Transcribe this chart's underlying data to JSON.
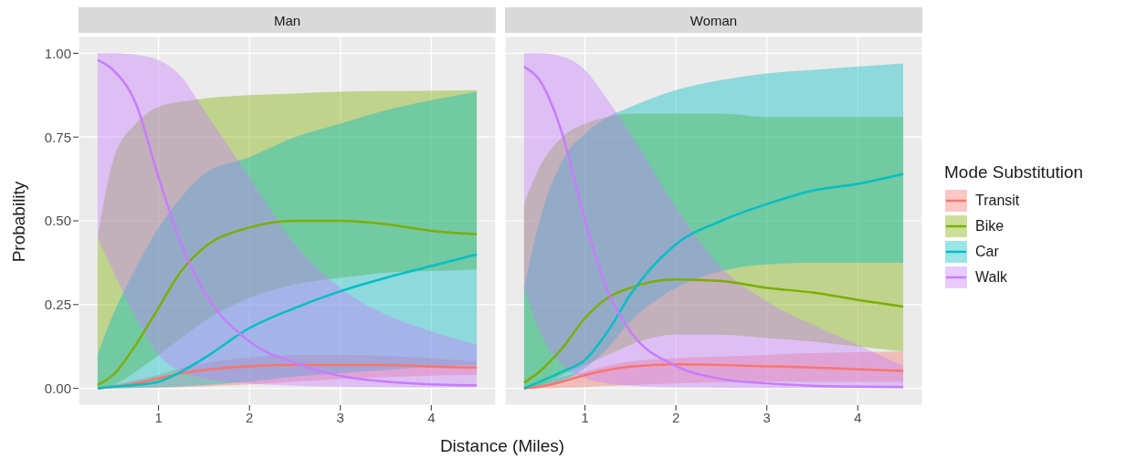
{
  "chart_data": [
    {
      "type": "line",
      "title": "Man",
      "ylabel": "Probability",
      "xlabel": "Distance (Miles)",
      "grid": true,
      "legend": false,
      "marker": "none",
      "line_style": "solid",
      "x": [
        0.33,
        0.5,
        0.75,
        1,
        1.25,
        1.5,
        2,
        2.5,
        3,
        3.5,
        4,
        4.5
      ],
      "xlim": [
        0.12,
        4.71
      ],
      "xticks": [
        1,
        2,
        3,
        4
      ],
      "ylim": [
        -0.05,
        1.05
      ],
      "yticks": [
        {
          "value": 0,
          "label": "0.00"
        },
        {
          "value": 0.25,
          "label": "0.25"
        },
        {
          "value": 0.5,
          "label": "0.50"
        },
        {
          "value": 0.75,
          "label": "0.75"
        },
        {
          "value": 1,
          "label": "1.00"
        }
      ],
      "series": [
        {
          "color": "#f8766d",
          "values": [
            0,
            0.005,
            0.015,
            0.03,
            0.045,
            0.055,
            0.066,
            0.07,
            0.07,
            0.07,
            0.065,
            0.062
          ],
          "lower": [
            0,
            0,
            0.001,
            0.002,
            0.004,
            0.006,
            0.012,
            0.02,
            0.028,
            0.034,
            0.038,
            0.04
          ],
          "upper": [
            0.003,
            0.01,
            0.025,
            0.04,
            0.06,
            0.075,
            0.092,
            0.1,
            0.1,
            0.097,
            0.09,
            0.08
          ]
        },
        {
          "color": "#7cae00",
          "values": [
            0.01,
            0.04,
            0.13,
            0.24,
            0.35,
            0.42,
            0.48,
            0.5,
            0.5,
            0.49,
            0.47,
            0.46
          ],
          "lower": [
            0,
            0.01,
            0.05,
            0.1,
            0.15,
            0.2,
            0.27,
            0.31,
            0.33,
            0.345,
            0.35,
            0.355
          ],
          "upper": [
            0.45,
            0.68,
            0.79,
            0.84,
            0.855,
            0.865,
            0.875,
            0.88,
            0.885,
            0.887,
            0.888,
            0.89
          ]
        },
        {
          "color": "#00bfc4",
          "values": [
            0,
            0.005,
            0.01,
            0.02,
            0.05,
            0.09,
            0.18,
            0.24,
            0.29,
            0.33,
            0.365,
            0.4
          ],
          "lower": [
            0,
            0,
            0.001,
            0.003,
            0.006,
            0.01,
            0.02,
            0.035,
            0.045,
            0.055,
            0.065,
            0.07
          ],
          "upper": [
            0.1,
            0.22,
            0.36,
            0.48,
            0.57,
            0.64,
            0.69,
            0.75,
            0.79,
            0.83,
            0.86,
            0.885
          ]
        },
        {
          "color": "#c77cff",
          "values": [
            0.98,
            0.95,
            0.85,
            0.63,
            0.43,
            0.29,
            0.14,
            0.076,
            0.037,
            0.02,
            0.012,
            0.009
          ],
          "lower": [
            0.45,
            0.35,
            0.21,
            0.1,
            0.05,
            0.03,
            0.015,
            0.008,
            0.005,
            0.004,
            0.003,
            0.003
          ],
          "upper": [
            1,
            1,
            0.995,
            0.98,
            0.93,
            0.83,
            0.63,
            0.43,
            0.3,
            0.22,
            0.17,
            0.13
          ]
        }
      ]
    },
    {
      "type": "line",
      "title": "Woman",
      "legend_title": "Mode Substitution",
      "grid": true,
      "legend": "right",
      "marker": "none",
      "line_style": "solid",
      "tick_labels": "x",
      "x": [
        0.33,
        0.5,
        0.75,
        1,
        1.25,
        1.5,
        2,
        2.5,
        3,
        3.5,
        4,
        4.5
      ],
      "xlim": [
        0.12,
        4.71
      ],
      "xticks": [
        1,
        2,
        3,
        4
      ],
      "ylim": [
        -0.05,
        1.05
      ],
      "yticks": [
        {
          "value": 0,
          "label": null
        },
        {
          "value": 0.25,
          "label": null
        },
        {
          "value": 0.5,
          "label": null
        },
        {
          "value": 0.75,
          "label": null
        },
        {
          "value": 1,
          "label": null
        }
      ],
      "series": [
        {
          "name": "Transit",
          "color": "#f8766d",
          "values": [
            0,
            0.005,
            0.02,
            0.04,
            0.055,
            0.065,
            0.072,
            0.07,
            0.066,
            0.062,
            0.057,
            0.052
          ],
          "lower": [
            0,
            0,
            0.002,
            0.004,
            0.007,
            0.01,
            0.015,
            0.018,
            0.02,
            0.02,
            0.02,
            0.02
          ],
          "upper": [
            0.005,
            0.015,
            0.035,
            0.05,
            0.068,
            0.08,
            0.09,
            0.095,
            0.1,
            0.105,
            0.108,
            0.11
          ]
        },
        {
          "name": "Bike",
          "color": "#7cae00",
          "values": [
            0.017,
            0.05,
            0.12,
            0.21,
            0.27,
            0.3,
            0.325,
            0.32,
            0.3,
            0.286,
            0.264,
            0.244
          ],
          "lower": [
            0,
            0.01,
            0.04,
            0.07,
            0.1,
            0.13,
            0.16,
            0.16,
            0.15,
            0.14,
            0.125,
            0.11
          ],
          "upper": [
            0.55,
            0.66,
            0.75,
            0.79,
            0.81,
            0.82,
            0.82,
            0.82,
            0.81,
            0.81,
            0.81,
            0.81
          ]
        },
        {
          "name": "Car",
          "color": "#00bfc4",
          "values": [
            0,
            0.02,
            0.05,
            0.085,
            0.17,
            0.28,
            0.43,
            0.5,
            0.55,
            0.59,
            0.61,
            0.64
          ],
          "lower": [
            0,
            0.005,
            0.02,
            0.06,
            0.12,
            0.2,
            0.3,
            0.35,
            0.37,
            0.375,
            0.375,
            0.375
          ],
          "upper": [
            0.3,
            0.5,
            0.68,
            0.76,
            0.81,
            0.84,
            0.89,
            0.92,
            0.94,
            0.95,
            0.96,
            0.97
          ]
        },
        {
          "name": "Walk",
          "color": "#c77cff",
          "values": [
            0.96,
            0.92,
            0.76,
            0.5,
            0.29,
            0.17,
            0.067,
            0.028,
            0.015,
            0.008,
            0.005,
            0.004
          ],
          "lower": [
            0.3,
            0.17,
            0.07,
            0.03,
            0.015,
            0.008,
            0.003,
            0.002,
            0.001,
            0.001,
            0.001,
            0.001
          ],
          "upper": [
            1,
            1,
            0.99,
            0.95,
            0.86,
            0.76,
            0.54,
            0.36,
            0.26,
            0.19,
            0.13,
            0.067
          ]
        }
      ]
    }
  ]
}
